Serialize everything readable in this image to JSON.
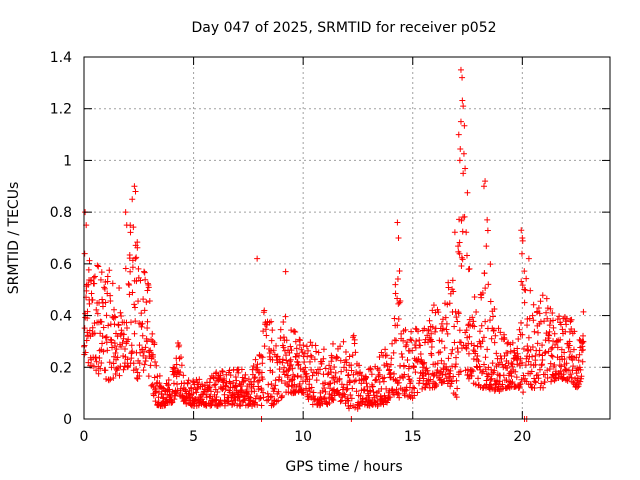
{
  "chart_data": {
    "type": "scatter",
    "title": "Day 047 of 2025, SRMTID for receiver p052",
    "xlabel": "GPS time / hours",
    "ylabel": "SRMTID / TECUs",
    "xlim": [
      0,
      24
    ],
    "ylim": [
      0,
      1.4
    ],
    "x_ticks": [
      0,
      5,
      10,
      15,
      20
    ],
    "x_tick_labels": [
      "0",
      "5",
      "10",
      "15",
      "20"
    ],
    "y_ticks": [
      0,
      0.2,
      0.4,
      0.6,
      0.8,
      1.0,
      1.2,
      1.4
    ],
    "y_tick_labels": [
      "0",
      "0.2",
      "0.4",
      "0.6",
      "0.8",
      "1",
      "1.2",
      "1.4"
    ],
    "grid": true,
    "marker": "+",
    "color": "#ff0000",
    "series": [
      {
        "name": "SRMTID",
        "envelope_x": [
          0,
          0.3,
          0.6,
          1.0,
          1.5,
          2.0,
          2.3,
          2.5,
          2.8,
          3.0,
          3.3,
          3.6,
          4.0,
          4.3,
          4.6,
          5.0,
          6.0,
          7.0,
          7.5,
          8.0,
          8.3,
          8.7,
          9.2,
          9.6,
          10.0,
          10.5,
          11.0,
          11.5,
          12.0,
          12.3,
          12.6,
          13.0,
          13.5,
          14.0,
          14.3,
          14.6,
          15.0,
          15.5,
          16.0,
          16.5,
          17.0,
          17.3,
          17.6,
          18.0,
          18.4,
          18.8,
          19.3,
          19.8,
          20.0,
          20.3,
          20.6,
          21.0,
          21.5,
          22.0,
          22.5,
          22.8
        ],
        "envelope_lo": [
          0.25,
          0.2,
          0.18,
          0.15,
          0.15,
          0.2,
          0.15,
          0.15,
          0.2,
          0.15,
          0.05,
          0.05,
          0.06,
          0.1,
          0.06,
          0.05,
          0.05,
          0.05,
          0.05,
          0.05,
          0.05,
          0.05,
          0.1,
          0.1,
          0.1,
          0.05,
          0.05,
          0.08,
          0.05,
          0.02,
          0.05,
          0.05,
          0.05,
          0.07,
          0.08,
          0.08,
          0.08,
          0.12,
          0.12,
          0.15,
          0.08,
          0.2,
          0.15,
          0.12,
          0.12,
          0.1,
          0.12,
          0.12,
          0.1,
          0.12,
          0.12,
          0.12,
          0.15,
          0.15,
          0.12,
          0.15
        ],
        "envelope_hi": [
          0.7,
          0.6,
          0.62,
          0.6,
          0.55,
          0.7,
          0.88,
          0.6,
          0.6,
          0.5,
          0.2,
          0.14,
          0.16,
          0.34,
          0.18,
          0.15,
          0.18,
          0.2,
          0.2,
          0.25,
          0.55,
          0.3,
          0.4,
          0.35,
          0.3,
          0.3,
          0.28,
          0.3,
          0.3,
          0.4,
          0.2,
          0.2,
          0.25,
          0.3,
          0.7,
          0.35,
          0.35,
          0.35,
          0.45,
          0.45,
          0.8,
          1.3,
          0.65,
          0.35,
          0.85,
          0.4,
          0.3,
          0.3,
          0.7,
          0.55,
          0.42,
          0.5,
          0.4,
          0.42,
          0.35,
          0.42
        ],
        "outliers": [
          {
            "x": 0.05,
            "y": 0.8
          },
          {
            "x": 0.1,
            "y": 0.75
          },
          {
            "x": 2.2,
            "y": 0.85
          },
          {
            "x": 2.3,
            "y": 0.9
          },
          {
            "x": 2.35,
            "y": 0.88
          },
          {
            "x": 1.9,
            "y": 0.8
          },
          {
            "x": 1.95,
            "y": 0.75
          },
          {
            "x": 7.9,
            "y": 0.62
          },
          {
            "x": 8.1,
            "y": 0.0
          },
          {
            "x": 9.2,
            "y": 0.57
          },
          {
            "x": 12.2,
            "y": 0.0
          },
          {
            "x": 14.3,
            "y": 0.76
          },
          {
            "x": 14.35,
            "y": 0.7
          },
          {
            "x": 17.2,
            "y": 1.35
          },
          {
            "x": 17.25,
            "y": 1.32
          },
          {
            "x": 17.3,
            "y": 1.21
          },
          {
            "x": 17.2,
            "y": 1.15
          },
          {
            "x": 17.1,
            "y": 1.1
          },
          {
            "x": 17.15,
            "y": 1.0
          },
          {
            "x": 17.3,
            "y": 0.95
          },
          {
            "x": 18.3,
            "y": 0.92
          },
          {
            "x": 18.25,
            "y": 0.9
          },
          {
            "x": 19.95,
            "y": 0.73
          },
          {
            "x": 20.0,
            "y": 0.7
          },
          {
            "x": 20.1,
            "y": 0.0
          },
          {
            "x": 20.2,
            "y": 0.0
          },
          {
            "x": 20.3,
            "y": 0.62
          }
        ]
      }
    ]
  }
}
